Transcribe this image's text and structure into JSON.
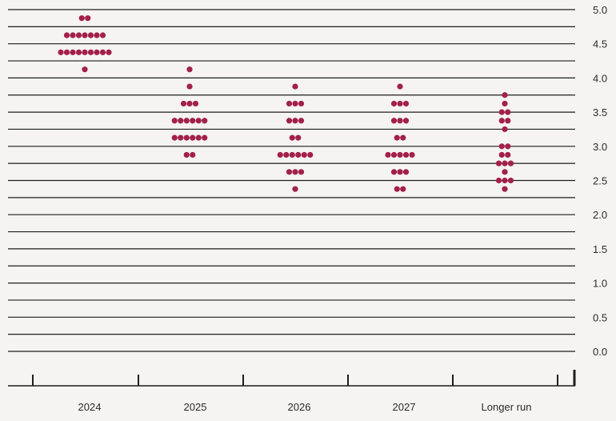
{
  "chart_data": {
    "type": "scatter",
    "title": "",
    "xlabel": "",
    "ylabel": "",
    "categories": [
      "2024",
      "2025",
      "2026",
      "2027",
      "Longer run"
    ],
    "ylim": [
      0,
      5
    ],
    "grid_step": 0.125,
    "y_ticks": [
      "0.0",
      "0.5",
      "1.0",
      "1.5",
      "2.0",
      "2.5",
      "3.0",
      "3.5",
      "4.0",
      "4.5",
      "5.0"
    ],
    "grid": true,
    "dot_color": "#a3204a",
    "series": [
      {
        "category": "2024",
        "points": [
          {
            "y": 4.875,
            "count": 2
          },
          {
            "y": 4.625,
            "count": 7
          },
          {
            "y": 4.375,
            "count": 9
          },
          {
            "y": 4.125,
            "count": 1
          }
        ]
      },
      {
        "category": "2025",
        "points": [
          {
            "y": 4.125,
            "count": 1
          },
          {
            "y": 3.875,
            "count": 1
          },
          {
            "y": 3.625,
            "count": 3
          },
          {
            "y": 3.375,
            "count": 6
          },
          {
            "y": 3.125,
            "count": 6
          },
          {
            "y": 2.875,
            "count": 2
          }
        ]
      },
      {
        "category": "2026",
        "points": [
          {
            "y": 3.875,
            "count": 1
          },
          {
            "y": 3.625,
            "count": 3
          },
          {
            "y": 3.375,
            "count": 3
          },
          {
            "y": 3.125,
            "count": 2
          },
          {
            "y": 2.875,
            "count": 6
          },
          {
            "y": 2.625,
            "count": 3
          },
          {
            "y": 2.375,
            "count": 1
          }
        ]
      },
      {
        "category": "2027",
        "points": [
          {
            "y": 3.875,
            "count": 1
          },
          {
            "y": 3.625,
            "count": 3
          },
          {
            "y": 3.375,
            "count": 3
          },
          {
            "y": 3.125,
            "count": 2
          },
          {
            "y": 2.875,
            "count": 5
          },
          {
            "y": 2.625,
            "count": 3
          },
          {
            "y": 2.375,
            "count": 2
          }
        ]
      },
      {
        "category": "Longer run",
        "points": [
          {
            "y": 3.75,
            "count": 1
          },
          {
            "y": 3.625,
            "count": 1
          },
          {
            "y": 3.5,
            "count": 2
          },
          {
            "y": 3.375,
            "count": 2
          },
          {
            "y": 3.25,
            "count": 1
          },
          {
            "y": 3.0,
            "count": 2
          },
          {
            "y": 2.875,
            "count": 2
          },
          {
            "y": 2.75,
            "count": 3
          },
          {
            "y": 2.625,
            "count": 1
          },
          {
            "y": 2.5,
            "count": 3
          },
          {
            "y": 2.375,
            "count": 1
          }
        ]
      }
    ]
  }
}
